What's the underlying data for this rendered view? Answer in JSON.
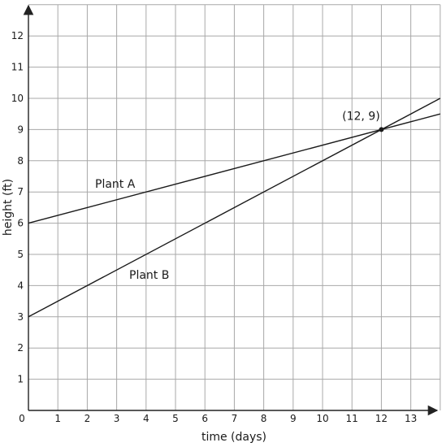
{
  "chart_data": {
    "type": "line",
    "xlabel": "time (days)",
    "ylabel": "height (ft)",
    "origin_label": "0",
    "xlim": [
      0,
      14
    ],
    "ylim": [
      0,
      13
    ],
    "x_ticks": [
      1,
      2,
      3,
      4,
      5,
      6,
      7,
      8,
      9,
      10,
      11,
      12,
      13
    ],
    "y_ticks": [
      1,
      2,
      3,
      4,
      5,
      6,
      7,
      8,
      9,
      10,
      11,
      12
    ],
    "grid": true,
    "series": [
      {
        "name": "Plant A",
        "x": [
          0,
          14
        ],
        "y": [
          6,
          9.5
        ]
      },
      {
        "name": "Plant B",
        "x": [
          0,
          14
        ],
        "y": [
          3,
          10
        ]
      }
    ],
    "annotations": [
      {
        "text": "(12, 9)",
        "x": 12,
        "y": 9
      }
    ]
  }
}
